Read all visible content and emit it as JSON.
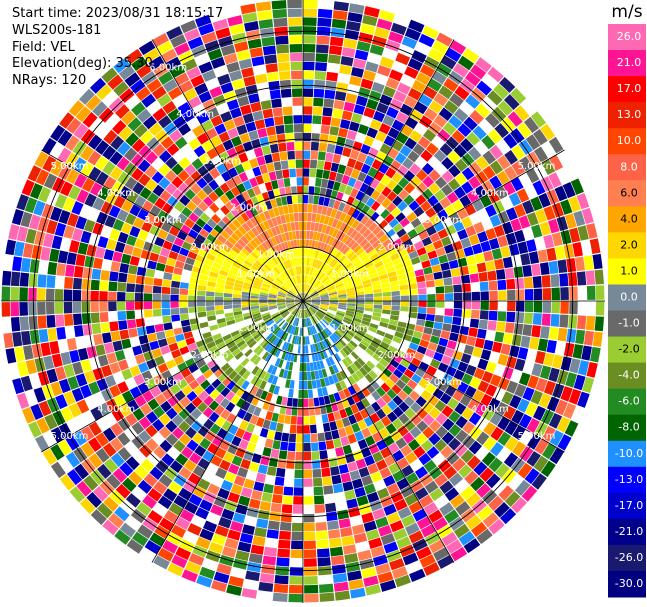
{
  "header": {
    "start_time": "Start time: 2023/08/31 18:15:17",
    "instrument": "WLS200s-181",
    "field": "Field: VEL",
    "elevation": "Elevation(deg): 35.30",
    "nrays": "NRays: 120"
  },
  "chart_data": {
    "type": "heatmap",
    "projection": "polar-ppi",
    "field": "VEL",
    "nrays": 120,
    "range_rings_km": [
      1.0,
      2.0,
      3.0,
      4.0,
      5.0
    ],
    "range_ring_labels": [
      "1.00km",
      "2.00km",
      "3.00km",
      "4.00km",
      "5.00km"
    ],
    "colorbar": {
      "unit": "m/s",
      "range": [
        -30.0,
        30.0
      ],
      "tick_labels": [
        "26.0",
        "21.0",
        "17.0",
        "13.0",
        "10.0",
        "8.0",
        "6.0",
        "4.0",
        "2.0",
        "1.0",
        "0.0",
        "-1.0",
        "-2.0",
        "-4.0",
        "-6.0",
        "-8.0",
        "-10.0",
        "-13.0",
        "-17.0",
        "-21.0",
        "-26.0",
        "-30.0"
      ],
      "colors": [
        "#ff69b4",
        "#ff1493",
        "#ff0000",
        "#ee2200",
        "#ff4500",
        "#ff6347",
        "#ff7f50",
        "#ffa500",
        "#ffd700",
        "#ffff00",
        "#778899",
        "#696969",
        "#9acd32",
        "#6b8e23",
        "#228b22",
        "#006400",
        "#1e90ff",
        "#0000ff",
        "#0000cd",
        "#00008b",
        "#191970",
        "#000080"
      ]
    },
    "pattern_note_colors": {
      "near_field_positive": [
        "#ffd700",
        "#ffff00",
        "#ffa500",
        "#ff7f50"
      ],
      "near_field_negative": [
        "#9acd32",
        "#6b8e23",
        "#228b22",
        "#1e90ff"
      ],
      "gap": "#778899"
    }
  }
}
